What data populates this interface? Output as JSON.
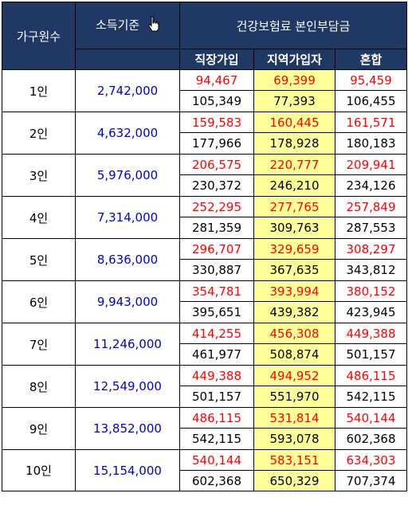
{
  "header": {
    "household_label": "가구원수",
    "income_label": "소득기준",
    "premium_label": "건강보험료 본인부담금",
    "sub": [
      "직장가입",
      "지역가입자",
      "혼합"
    ]
  },
  "rows": [
    {
      "household": "1인",
      "income": "2,742,000",
      "top": [
        "94,467",
        "69,399",
        "95,459"
      ],
      "bottom": [
        "105,349",
        "77,393",
        "106,455"
      ]
    },
    {
      "household": "2인",
      "income": "4,632,000",
      "top": [
        "159,583",
        "160,445",
        "161,571"
      ],
      "bottom": [
        "177,966",
        "178,928",
        "180,183"
      ]
    },
    {
      "household": "3인",
      "income": "5,976,000",
      "top": [
        "206,575",
        "220,777",
        "209,941"
      ],
      "bottom": [
        "230,372",
        "246,210",
        "234,126"
      ]
    },
    {
      "household": "4인",
      "income": "7,314,000",
      "top": [
        "252,295",
        "277,765",
        "257,849"
      ],
      "bottom": [
        "281,359",
        "309,763",
        "287,553"
      ]
    },
    {
      "household": "5인",
      "income": "8,636,000",
      "top": [
        "296,707",
        "329,659",
        "308,297"
      ],
      "bottom": [
        "330,887",
        "367,635",
        "343,812"
      ]
    },
    {
      "household": "6인",
      "income": "9,943,000",
      "top": [
        "354,781",
        "393,994",
        "380,152"
      ],
      "bottom": [
        "395,651",
        "439,382",
        "423,945"
      ]
    },
    {
      "household": "7인",
      "income": "11,246,000",
      "top": [
        "414,255",
        "456,308",
        "449,388"
      ],
      "bottom": [
        "461,977",
        "508,874",
        "501,157"
      ]
    },
    {
      "household": "8인",
      "income": "12,549,000",
      "top": [
        "449,388",
        "494,952",
        "486,115"
      ],
      "bottom": [
        "501,157",
        "551,970",
        "542,115"
      ]
    },
    {
      "household": "9인",
      "income": "13,852,000",
      "top": [
        "486,115",
        "531,814",
        "540,144"
      ],
      "bottom": [
        "542,115",
        "593,078",
        "602,368"
      ]
    },
    {
      "household": "10인",
      "income": "15,154,000",
      "top": [
        "540,144",
        "583,151",
        "634,303"
      ],
      "bottom": [
        "602,368",
        "650,329",
        "707,374"
      ]
    }
  ],
  "colors": {
    "header_bg": "#1f3864",
    "income_text": "#0000cc",
    "top_value": "#ff0000",
    "highlight": "#ffff99"
  },
  "icons": {
    "cursor": "hand-pointer-icon"
  }
}
